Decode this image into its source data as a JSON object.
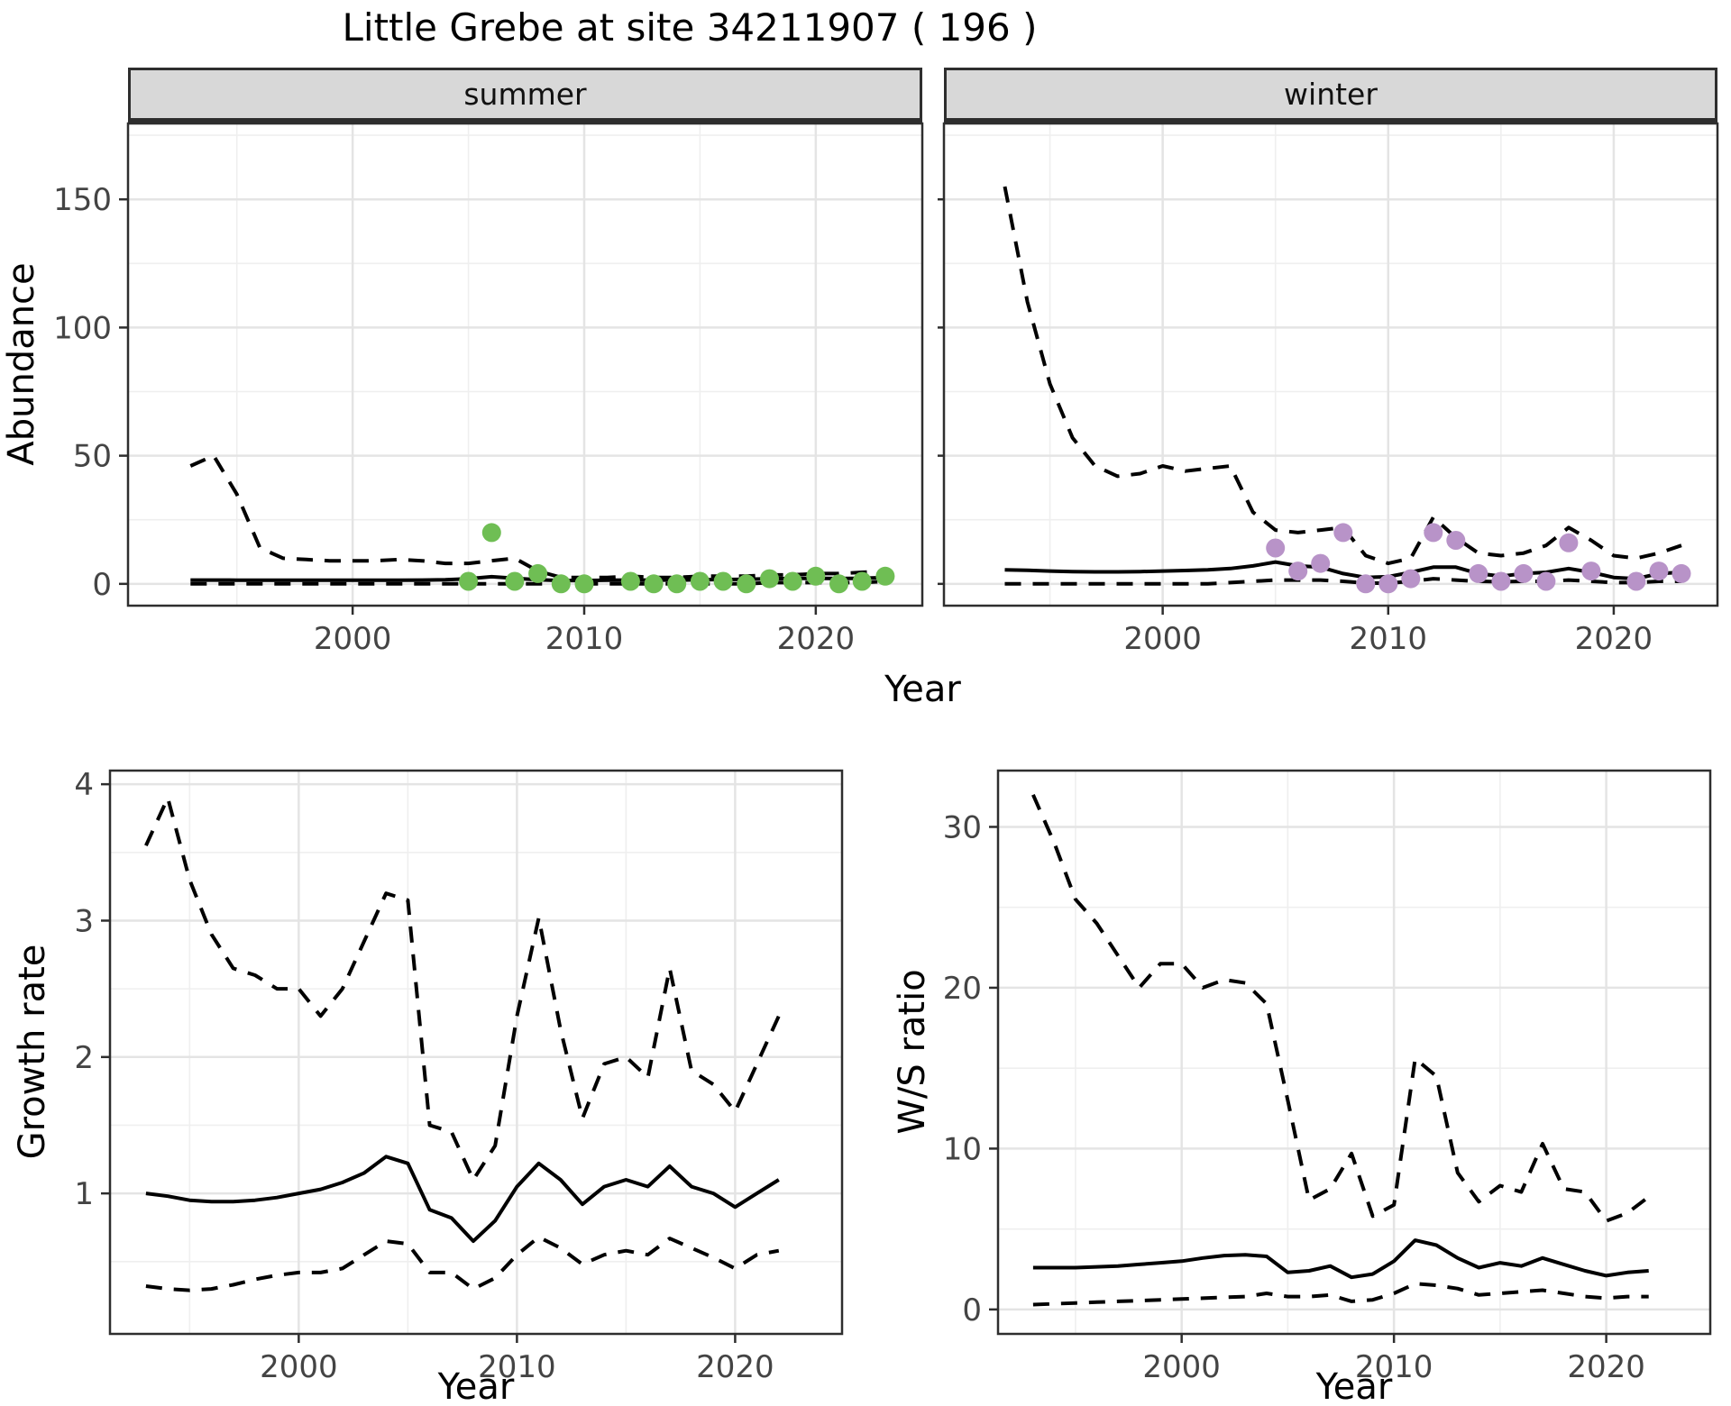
{
  "title": "Little Grebe at site 34211907 ( 196 )",
  "facets": {
    "summer": "summer",
    "winter": "winter"
  },
  "axes": {
    "abundance": "Abundance",
    "year": "Year",
    "growth": "Growth rate",
    "ws": "W/S ratio"
  },
  "colors": {
    "summer_point": "#6FBE54",
    "winter_point": "#B893C8",
    "line": "#000000",
    "grid_major": "#E4E4E4",
    "grid_minor": "#EFEFEF",
    "strip_bg": "#D8D8D8",
    "panel_border": "#2E2E2E",
    "tick_text": "#444444"
  },
  "chart_data": [
    {
      "id": "summer_abundance",
      "type": "line+scatter",
      "facet": "summer",
      "ylabel": "Abundance",
      "xlabel": "Year",
      "xlim": [
        1990.3,
        2024.6
      ],
      "ylim": [
        -8.5,
        179.6
      ],
      "xticks": [
        2000,
        2010,
        2020
      ],
      "xminor": [
        1995,
        2005,
        2015
      ],
      "yticks": [
        0,
        50,
        100,
        150
      ],
      "yminor": [
        25,
        75,
        125,
        175
      ],
      "x": [
        1993,
        1994,
        1995,
        1996,
        1997,
        1998,
        1999,
        2000,
        2001,
        2002,
        2003,
        2004,
        2005,
        2006,
        2007,
        2008,
        2009,
        2010,
        2011,
        2012,
        2013,
        2014,
        2015,
        2016,
        2017,
        2018,
        2019,
        2020,
        2021,
        2022,
        2023
      ],
      "series": [
        {
          "name": "fitted median",
          "style": "solid",
          "values": [
            1.5,
            1.5,
            1.45,
            1.4,
            1.4,
            1.4,
            1.4,
            1.4,
            1.4,
            1.4,
            1.5,
            1.6,
            2.0,
            2.8,
            2.2,
            1.6,
            1.3,
            1.3,
            1.4,
            1.5,
            1.5,
            1.5,
            1.6,
            1.7,
            1.8,
            2.0,
            2.1,
            2.2,
            2.1,
            2.2,
            2.5
          ]
        },
        {
          "name": "upper CI",
          "style": "dashed",
          "values": [
            46,
            50,
            35,
            14,
            10,
            9.5,
            9,
            9,
            9,
            9.5,
            9,
            8,
            8,
            9,
            10,
            5,
            2.5,
            2.5,
            2.5,
            3,
            2.5,
            2.5,
            3,
            3,
            3,
            3.5,
            3.5,
            4,
            4,
            4.5,
            5
          ]
        },
        {
          "name": "lower CI",
          "style": "dashed",
          "values": [
            0,
            0,
            0,
            0,
            0,
            0,
            0,
            0,
            0,
            0,
            0,
            0,
            0,
            0,
            0,
            0,
            0,
            0,
            0,
            0,
            0,
            0,
            0,
            0,
            0,
            0.5,
            0.5,
            0.5,
            0.5,
            0.5,
            1
          ]
        }
      ],
      "points": {
        "name": "observed summer counts",
        "color": "summer_point",
        "x": [
          2005,
          2006,
          2007,
          2008,
          2009,
          2010,
          2012,
          2013,
          2014,
          2015,
          2016,
          2017,
          2018,
          2019,
          2020,
          2021,
          2022,
          2023
        ],
        "y": [
          1,
          20,
          1,
          4,
          0,
          0,
          1,
          0,
          0,
          1,
          1,
          0,
          2,
          1,
          3,
          0,
          1,
          3
        ]
      }
    },
    {
      "id": "winter_abundance",
      "type": "line+scatter",
      "facet": "winter",
      "ylabel": "Abundance",
      "xlabel": "Year",
      "xlim": [
        1990.3,
        2024.6
      ],
      "ylim": [
        -8.5,
        179.6
      ],
      "xticks": [
        2000,
        2010,
        2020
      ],
      "xminor": [
        1995,
        2005,
        2015
      ],
      "yticks": [
        0,
        50,
        100,
        150
      ],
      "yminor": [
        25,
        75,
        125,
        175
      ],
      "x": [
        1993,
        1994,
        1995,
        1996,
        1997,
        1998,
        1999,
        2000,
        2001,
        2002,
        2003,
        2004,
        2005,
        2006,
        2007,
        2008,
        2009,
        2010,
        2011,
        2012,
        2013,
        2014,
        2015,
        2016,
        2017,
        2018,
        2019,
        2020,
        2021,
        2022,
        2023
      ],
      "series": [
        {
          "name": "fitted median",
          "style": "solid",
          "values": [
            5.5,
            5.3,
            5.0,
            4.8,
            4.7,
            4.7,
            4.8,
            5.0,
            5.2,
            5.5,
            6.0,
            7.0,
            8.5,
            7.0,
            6.5,
            4.0,
            2.5,
            2.8,
            4.5,
            6.5,
            6.5,
            4.0,
            3.0,
            4.0,
            4.5,
            6.0,
            4.5,
            2.5,
            2.0,
            4.0,
            4.5
          ]
        },
        {
          "name": "upper CI",
          "style": "dashed",
          "values": [
            155,
            110,
            78,
            57,
            46,
            42,
            43,
            46,
            44,
            45,
            46,
            28,
            21,
            20,
            21,
            22,
            11,
            8,
            10,
            26,
            18,
            12,
            11,
            12,
            15,
            22,
            17,
            11,
            10,
            12,
            15
          ]
        },
        {
          "name": "lower CI",
          "style": "dashed",
          "values": [
            0,
            0,
            0,
            0,
            0,
            0,
            0,
            0,
            0,
            0,
            0.5,
            1,
            1.5,
            1.5,
            1.5,
            1,
            0.3,
            0.3,
            1,
            2,
            1.5,
            1,
            0.8,
            1,
            1,
            1.5,
            1,
            0.5,
            0.5,
            1,
            1
          ]
        }
      ],
      "points": {
        "name": "observed winter counts",
        "color": "winter_point",
        "x": [
          2005,
          2006,
          2007,
          2008,
          2009,
          2010,
          2011,
          2012,
          2013,
          2014,
          2015,
          2016,
          2017,
          2018,
          2019,
          2021,
          2022,
          2023
        ],
        "y": [
          14,
          5,
          8,
          20,
          0,
          0,
          2,
          20,
          17,
          4,
          1,
          4,
          1,
          16,
          5,
          1,
          5,
          4
        ]
      }
    },
    {
      "id": "growth_rate",
      "type": "line",
      "ylabel": "Growth rate",
      "xlabel": "Year",
      "xlim": [
        1991.35,
        2024.9
      ],
      "ylim": [
        -0.03,
        4.1
      ],
      "xticks": [
        2000,
        2010,
        2020
      ],
      "xminor": [
        1995,
        2005,
        2015
      ],
      "yticks": [
        1,
        2,
        3,
        4
      ],
      "yminor": [
        0.5,
        1.5,
        2.5,
        3.5
      ],
      "x": [
        1993,
        1994,
        1995,
        1996,
        1997,
        1998,
        1999,
        2000,
        2001,
        2002,
        2003,
        2004,
        2005,
        2006,
        2007,
        2008,
        2009,
        2010,
        2011,
        2012,
        2013,
        2014,
        2015,
        2016,
        2017,
        2018,
        2019,
        2020,
        2021,
        2022
      ],
      "series": [
        {
          "name": "fitted median",
          "style": "solid",
          "values": [
            1.0,
            0.98,
            0.95,
            0.94,
            0.94,
            0.95,
            0.97,
            1.0,
            1.03,
            1.08,
            1.15,
            1.27,
            1.22,
            0.88,
            0.82,
            0.65,
            0.8,
            1.05,
            1.22,
            1.1,
            0.92,
            1.05,
            1.1,
            1.05,
            1.2,
            1.05,
            1.0,
            0.9,
            1.0,
            1.1
          ]
        },
        {
          "name": "upper CI",
          "style": "dashed",
          "values": [
            3.55,
            3.9,
            3.3,
            2.9,
            2.65,
            2.6,
            2.5,
            2.5,
            2.3,
            2.5,
            2.85,
            3.2,
            3.15,
            1.5,
            1.45,
            1.1,
            1.35,
            2.3,
            3.02,
            2.2,
            1.55,
            1.95,
            2.0,
            1.85,
            2.65,
            1.9,
            1.8,
            1.6,
            1.95,
            2.3
          ]
        },
        {
          "name": "lower CI",
          "style": "dashed",
          "values": [
            0.32,
            0.3,
            0.29,
            0.3,
            0.33,
            0.37,
            0.4,
            0.42,
            0.42,
            0.45,
            0.55,
            0.65,
            0.63,
            0.42,
            0.42,
            0.3,
            0.38,
            0.55,
            0.68,
            0.6,
            0.48,
            0.55,
            0.58,
            0.55,
            0.67,
            0.6,
            0.53,
            0.45,
            0.55,
            0.58
          ]
        }
      ]
    },
    {
      "id": "ws_ratio",
      "type": "line",
      "ylabel": "W/S ratio",
      "xlabel": "Year",
      "xlim": [
        1991.35,
        2024.9
      ],
      "ylim": [
        -1.52,
        33.5
      ],
      "xticks": [
        2000,
        2010,
        2020
      ],
      "xminor": [
        1995,
        2005,
        2015
      ],
      "yticks": [
        0,
        10,
        20,
        30
      ],
      "yminor": [
        5,
        15,
        25
      ],
      "x": [
        1993,
        1994,
        1995,
        1996,
        1997,
        1998,
        1999,
        2000,
        2001,
        2002,
        2003,
        2004,
        2005,
        2006,
        2007,
        2008,
        2009,
        2010,
        2011,
        2012,
        2013,
        2014,
        2015,
        2016,
        2017,
        2018,
        2019,
        2020,
        2021,
        2022
      ],
      "series": [
        {
          "name": "fitted median",
          "style": "solid",
          "values": [
            2.6,
            2.6,
            2.6,
            2.65,
            2.7,
            2.8,
            2.9,
            3.0,
            3.2,
            3.35,
            3.4,
            3.3,
            2.3,
            2.4,
            2.7,
            2.0,
            2.2,
            3.0,
            4.3,
            4.0,
            3.2,
            2.6,
            2.9,
            2.7,
            3.2,
            2.8,
            2.4,
            2.1,
            2.3,
            2.4
          ]
        },
        {
          "name": "upper CI",
          "style": "dashed",
          "values": [
            32,
            29,
            25.5,
            24,
            22,
            20,
            21.5,
            21.5,
            20,
            20.5,
            20.3,
            19,
            13,
            6.8,
            7.5,
            9.7,
            5.8,
            6.5,
            15.6,
            14.5,
            8.5,
            6.7,
            7.7,
            7.3,
            10.3,
            7.5,
            7.3,
            5.5,
            6.0,
            7.0
          ]
        },
        {
          "name": "lower CI",
          "style": "dashed",
          "values": [
            0.3,
            0.35,
            0.4,
            0.45,
            0.5,
            0.55,
            0.6,
            0.65,
            0.7,
            0.75,
            0.8,
            1.0,
            0.8,
            0.8,
            0.9,
            0.5,
            0.6,
            1.0,
            1.6,
            1.5,
            1.3,
            0.9,
            1.0,
            1.1,
            1.2,
            1.0,
            0.8,
            0.7,
            0.8,
            0.8
          ]
        }
      ]
    }
  ]
}
